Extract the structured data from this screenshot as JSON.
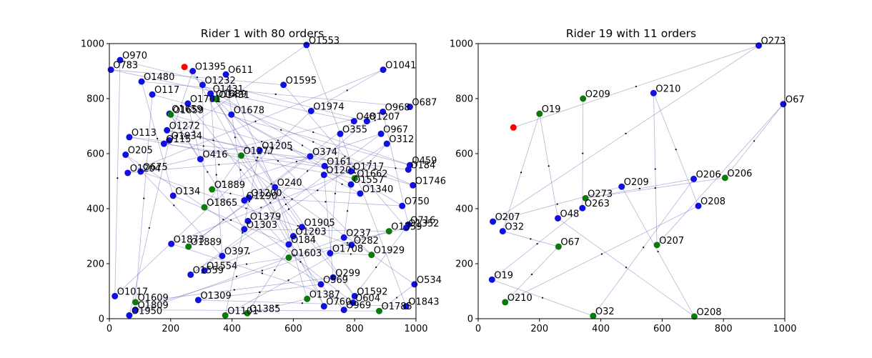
{
  "chart_data": [
    {
      "type": "scatter",
      "title": "Rider 1 with 80 orders",
      "xlim": [
        0,
        1000
      ],
      "ylim": [
        0,
        1000
      ],
      "xticks": [
        "0",
        "200",
        "400",
        "600",
        "800",
        "1000"
      ],
      "yticks": [
        "0",
        "200",
        "400",
        "600",
        "800",
        "1000"
      ],
      "colors": {
        "pickup": "#1010e0",
        "dropoff": "#0a7a0a",
        "rider": "#ff0000",
        "route": "#5a5aad"
      },
      "rider": {
        "x": 245,
        "y": 915
      },
      "points": [
        {
          "label": "O970",
          "x": 35,
          "y": 940,
          "kind": "pickup"
        },
        {
          "label": "O783",
          "x": 5,
          "y": 905,
          "kind": "pickup"
        },
        {
          "label": "O1395",
          "x": 272,
          "y": 900,
          "kind": "pickup"
        },
        {
          "label": "O611",
          "x": 380,
          "y": 888,
          "kind": "pickup"
        },
        {
          "label": "O1553",
          "x": 643,
          "y": 995,
          "kind": "pickup"
        },
        {
          "label": "O1041",
          "x": 893,
          "y": 905,
          "kind": "pickup"
        },
        {
          "label": "O1480",
          "x": 105,
          "y": 862,
          "kind": "pickup"
        },
        {
          "label": "O1232",
          "x": 304,
          "y": 850,
          "kind": "pickup"
        },
        {
          "label": "O1595",
          "x": 568,
          "y": 850,
          "kind": "pickup"
        },
        {
          "label": "O1431",
          "x": 330,
          "y": 818,
          "kind": "pickup"
        },
        {
          "label": "O117",
          "x": 140,
          "y": 815,
          "kind": "pickup"
        },
        {
          "label": "O1689",
          "x": 340,
          "y": 800,
          "kind": "pickup"
        },
        {
          "label": "O1701",
          "x": 256,
          "y": 782,
          "kind": "pickup"
        },
        {
          "label": "O687",
          "x": 980,
          "y": 770,
          "kind": "pickup"
        },
        {
          "label": "O1974",
          "x": 658,
          "y": 755,
          "kind": "pickup"
        },
        {
          "label": "O968",
          "x": 892,
          "y": 752,
          "kind": "pickup"
        },
        {
          "label": "O1659",
          "x": 196,
          "y": 745,
          "kind": "pickup"
        },
        {
          "label": "O1678",
          "x": 398,
          "y": 742,
          "kind": "pickup"
        },
        {
          "label": "O48",
          "x": 798,
          "y": 718,
          "kind": "pickup"
        },
        {
          "label": "O1207",
          "x": 840,
          "y": 718,
          "kind": "pickup"
        },
        {
          "label": "O1272",
          "x": 188,
          "y": 685,
          "kind": "pickup"
        },
        {
          "label": "O355",
          "x": 753,
          "y": 672,
          "kind": "pickup"
        },
        {
          "label": "O967",
          "x": 886,
          "y": 672,
          "kind": "pickup"
        },
        {
          "label": "O113",
          "x": 65,
          "y": 660,
          "kind": "pickup"
        },
        {
          "label": "O1934",
          "x": 195,
          "y": 648,
          "kind": "pickup"
        },
        {
          "label": "O115",
          "x": 178,
          "y": 636,
          "kind": "pickup"
        },
        {
          "label": "O312",
          "x": 905,
          "y": 636,
          "kind": "pickup"
        },
        {
          "label": "O1205",
          "x": 490,
          "y": 612,
          "kind": "pickup"
        },
        {
          "label": "O205",
          "x": 53,
          "y": 596,
          "kind": "pickup"
        },
        {
          "label": "O374",
          "x": 655,
          "y": 590,
          "kind": "pickup"
        },
        {
          "label": "O416",
          "x": 297,
          "y": 580,
          "kind": "pickup"
        },
        {
          "label": "O459",
          "x": 980,
          "y": 558,
          "kind": "pickup"
        },
        {
          "label": "O161",
          "x": 702,
          "y": 555,
          "kind": "pickup"
        },
        {
          "label": "O184",
          "x": 975,
          "y": 542,
          "kind": "pickup"
        },
        {
          "label": "O1717",
          "x": 788,
          "y": 536,
          "kind": "pickup"
        },
        {
          "label": "O675",
          "x": 102,
          "y": 535,
          "kind": "pickup"
        },
        {
          "label": "O1204",
          "x": 60,
          "y": 530,
          "kind": "pickup"
        },
        {
          "label": "O1201",
          "x": 700,
          "y": 523,
          "kind": "pickup"
        },
        {
          "label": "O1557",
          "x": 788,
          "y": 488,
          "kind": "pickup"
        },
        {
          "label": "O1746",
          "x": 990,
          "y": 485,
          "kind": "pickup"
        },
        {
          "label": "O240",
          "x": 540,
          "y": 478,
          "kind": "pickup"
        },
        {
          "label": "O1340",
          "x": 818,
          "y": 455,
          "kind": "pickup"
        },
        {
          "label": "O134",
          "x": 208,
          "y": 447,
          "kind": "pickup"
        },
        {
          "label": "O1200",
          "x": 455,
          "y": 440,
          "kind": "pickup"
        },
        {
          "label": "O1290",
          "x": 440,
          "y": 430,
          "kind": "pickup"
        },
        {
          "label": "O750",
          "x": 955,
          "y": 410,
          "kind": "pickup"
        },
        {
          "label": "O1379",
          "x": 452,
          "y": 355,
          "kind": "pickup"
        },
        {
          "label": "O716",
          "x": 975,
          "y": 342,
          "kind": "pickup"
        },
        {
          "label": "O1352",
          "x": 968,
          "y": 330,
          "kind": "pickup"
        },
        {
          "label": "O1905",
          "x": 628,
          "y": 333,
          "kind": "pickup"
        },
        {
          "label": "O1303",
          "x": 440,
          "y": 325,
          "kind": "pickup"
        },
        {
          "label": "O1203",
          "x": 600,
          "y": 300,
          "kind": "pickup"
        },
        {
          "label": "O237",
          "x": 765,
          "y": 295,
          "kind": "pickup"
        },
        {
          "label": "O282",
          "x": 790,
          "y": 268,
          "kind": "pickup"
        },
        {
          "label": "O1873",
          "x": 202,
          "y": 272,
          "kind": "pickup"
        },
        {
          "label": "O184b",
          "display": "O184",
          "x": 585,
          "y": 270,
          "kind": "pickup"
        },
        {
          "label": "O1708",
          "x": 720,
          "y": 238,
          "kind": "pickup"
        },
        {
          "label": "O397",
          "x": 368,
          "y": 228,
          "kind": "pickup"
        },
        {
          "label": "O534",
          "x": 995,
          "y": 125,
          "kind": "pickup"
        },
        {
          "label": "O1554",
          "x": 310,
          "y": 175,
          "kind": "pickup"
        },
        {
          "label": "O1559",
          "x": 265,
          "y": 160,
          "kind": "pickup"
        },
        {
          "label": "O299",
          "x": 730,
          "y": 150,
          "kind": "pickup"
        },
        {
          "label": "O569",
          "x": 690,
          "y": 125,
          "kind": "pickup"
        },
        {
          "label": "O1017",
          "x": 18,
          "y": 82,
          "kind": "pickup"
        },
        {
          "label": "O1309",
          "x": 290,
          "y": 68,
          "kind": "pickup"
        },
        {
          "label": "O1592",
          "x": 800,
          "y": 82,
          "kind": "pickup"
        },
        {
          "label": "O604",
          "x": 795,
          "y": 58,
          "kind": "pickup"
        },
        {
          "label": "O1843",
          "x": 968,
          "y": 45,
          "kind": "pickup"
        },
        {
          "label": "O760",
          "x": 700,
          "y": 45,
          "kind": "pickup"
        },
        {
          "label": "O969",
          "x": 765,
          "y": 32,
          "kind": "pickup"
        },
        {
          "label": "O1809",
          "x": 85,
          "y": 32,
          "kind": "pickup"
        },
        {
          "label": "O1950",
          "x": 65,
          "y": 12,
          "kind": "pickup"
        },
        {
          "label": "O1431b",
          "display": "O1431",
          "x": 350,
          "y": 798,
          "kind": "dropoff"
        },
        {
          "label": "O1659b",
          "display": "O1659",
          "x": 200,
          "y": 742,
          "kind": "dropoff"
        },
        {
          "label": "O1277",
          "x": 430,
          "y": 593,
          "kind": "dropoff"
        },
        {
          "label": "O1662",
          "x": 800,
          "y": 510,
          "kind": "dropoff"
        },
        {
          "label": "O1889",
          "x": 335,
          "y": 470,
          "kind": "dropoff"
        },
        {
          "label": "O1865",
          "x": 310,
          "y": 405,
          "kind": "dropoff"
        },
        {
          "label": "O1359",
          "x": 912,
          "y": 318,
          "kind": "dropoff"
        },
        {
          "label": "O1603",
          "x": 585,
          "y": 222,
          "kind": "dropoff"
        },
        {
          "label": "O1889b",
          "display": "O1889",
          "x": 258,
          "y": 262,
          "kind": "dropoff"
        },
        {
          "label": "O1929",
          "x": 855,
          "y": 232,
          "kind": "dropoff"
        },
        {
          "label": "O1609",
          "x": 85,
          "y": 60,
          "kind": "dropoff"
        },
        {
          "label": "O1387",
          "x": 645,
          "y": 72,
          "kind": "dropoff"
        },
        {
          "label": "O1101",
          "x": 378,
          "y": 12,
          "kind": "dropoff"
        },
        {
          "label": "O1385",
          "x": 450,
          "y": 20,
          "kind": "dropoff"
        },
        {
          "label": "O1785",
          "x": 880,
          "y": 28,
          "kind": "dropoff"
        }
      ]
    },
    {
      "type": "scatter",
      "title": "Rider 19 with 11 orders",
      "xlim": [
        0,
        1000
      ],
      "ylim": [
        0,
        1000
      ],
      "xticks": [
        "0",
        "200",
        "400",
        "600",
        "800",
        "1000"
      ],
      "yticks": [
        "0",
        "200",
        "400",
        "600",
        "800",
        "1000"
      ],
      "colors": {
        "pickup": "#1010e0",
        "dropoff": "#0a7a0a",
        "rider": "#ff0000",
        "route": "#5a5aad"
      },
      "rider": {
        "x": 115,
        "y": 695
      },
      "points": [
        {
          "label": "O273",
          "x": 915,
          "y": 993,
          "kind": "pickup"
        },
        {
          "label": "O210",
          "x": 572,
          "y": 820,
          "kind": "pickup"
        },
        {
          "label": "O67",
          "x": 995,
          "y": 780,
          "kind": "pickup"
        },
        {
          "label": "O209",
          "x": 468,
          "y": 480,
          "kind": "pickup"
        },
        {
          "label": "O206",
          "x": 703,
          "y": 508,
          "kind": "pickup"
        },
        {
          "label": "O208",
          "x": 718,
          "y": 410,
          "kind": "pickup"
        },
        {
          "label": "O263",
          "x": 340,
          "y": 402,
          "kind": "pickup"
        },
        {
          "label": "O48",
          "x": 260,
          "y": 365,
          "kind": "pickup"
        },
        {
          "label": "O207",
          "x": 48,
          "y": 353,
          "kind": "pickup"
        },
        {
          "label": "O32",
          "x": 80,
          "y": 318,
          "kind": "pickup"
        },
        {
          "label": "O19",
          "x": 45,
          "y": 142,
          "kind": "pickup"
        },
        {
          "label": "O209b",
          "display": "O209",
          "x": 342,
          "y": 800,
          "kind": "dropoff"
        },
        {
          "label": "O19b",
          "display": "O19",
          "x": 200,
          "y": 745,
          "kind": "dropoff"
        },
        {
          "label": "O206b",
          "display": "O206",
          "x": 805,
          "y": 512,
          "kind": "dropoff"
        },
        {
          "label": "O273b",
          "display": "O273",
          "x": 350,
          "y": 438,
          "kind": "dropoff"
        },
        {
          "label": "O67b",
          "display": "O67",
          "x": 262,
          "y": 262,
          "kind": "dropoff"
        },
        {
          "label": "O207b",
          "display": "O207",
          "x": 583,
          "y": 268,
          "kind": "dropoff"
        },
        {
          "label": "O210b",
          "display": "O210",
          "x": 88,
          "y": 60,
          "kind": "dropoff"
        },
        {
          "label": "O32b",
          "display": "O32",
          "x": 375,
          "y": 10,
          "kind": "dropoff"
        },
        {
          "label": "O208b",
          "display": "O208",
          "x": 705,
          "y": 8,
          "kind": "dropoff"
        }
      ]
    }
  ]
}
